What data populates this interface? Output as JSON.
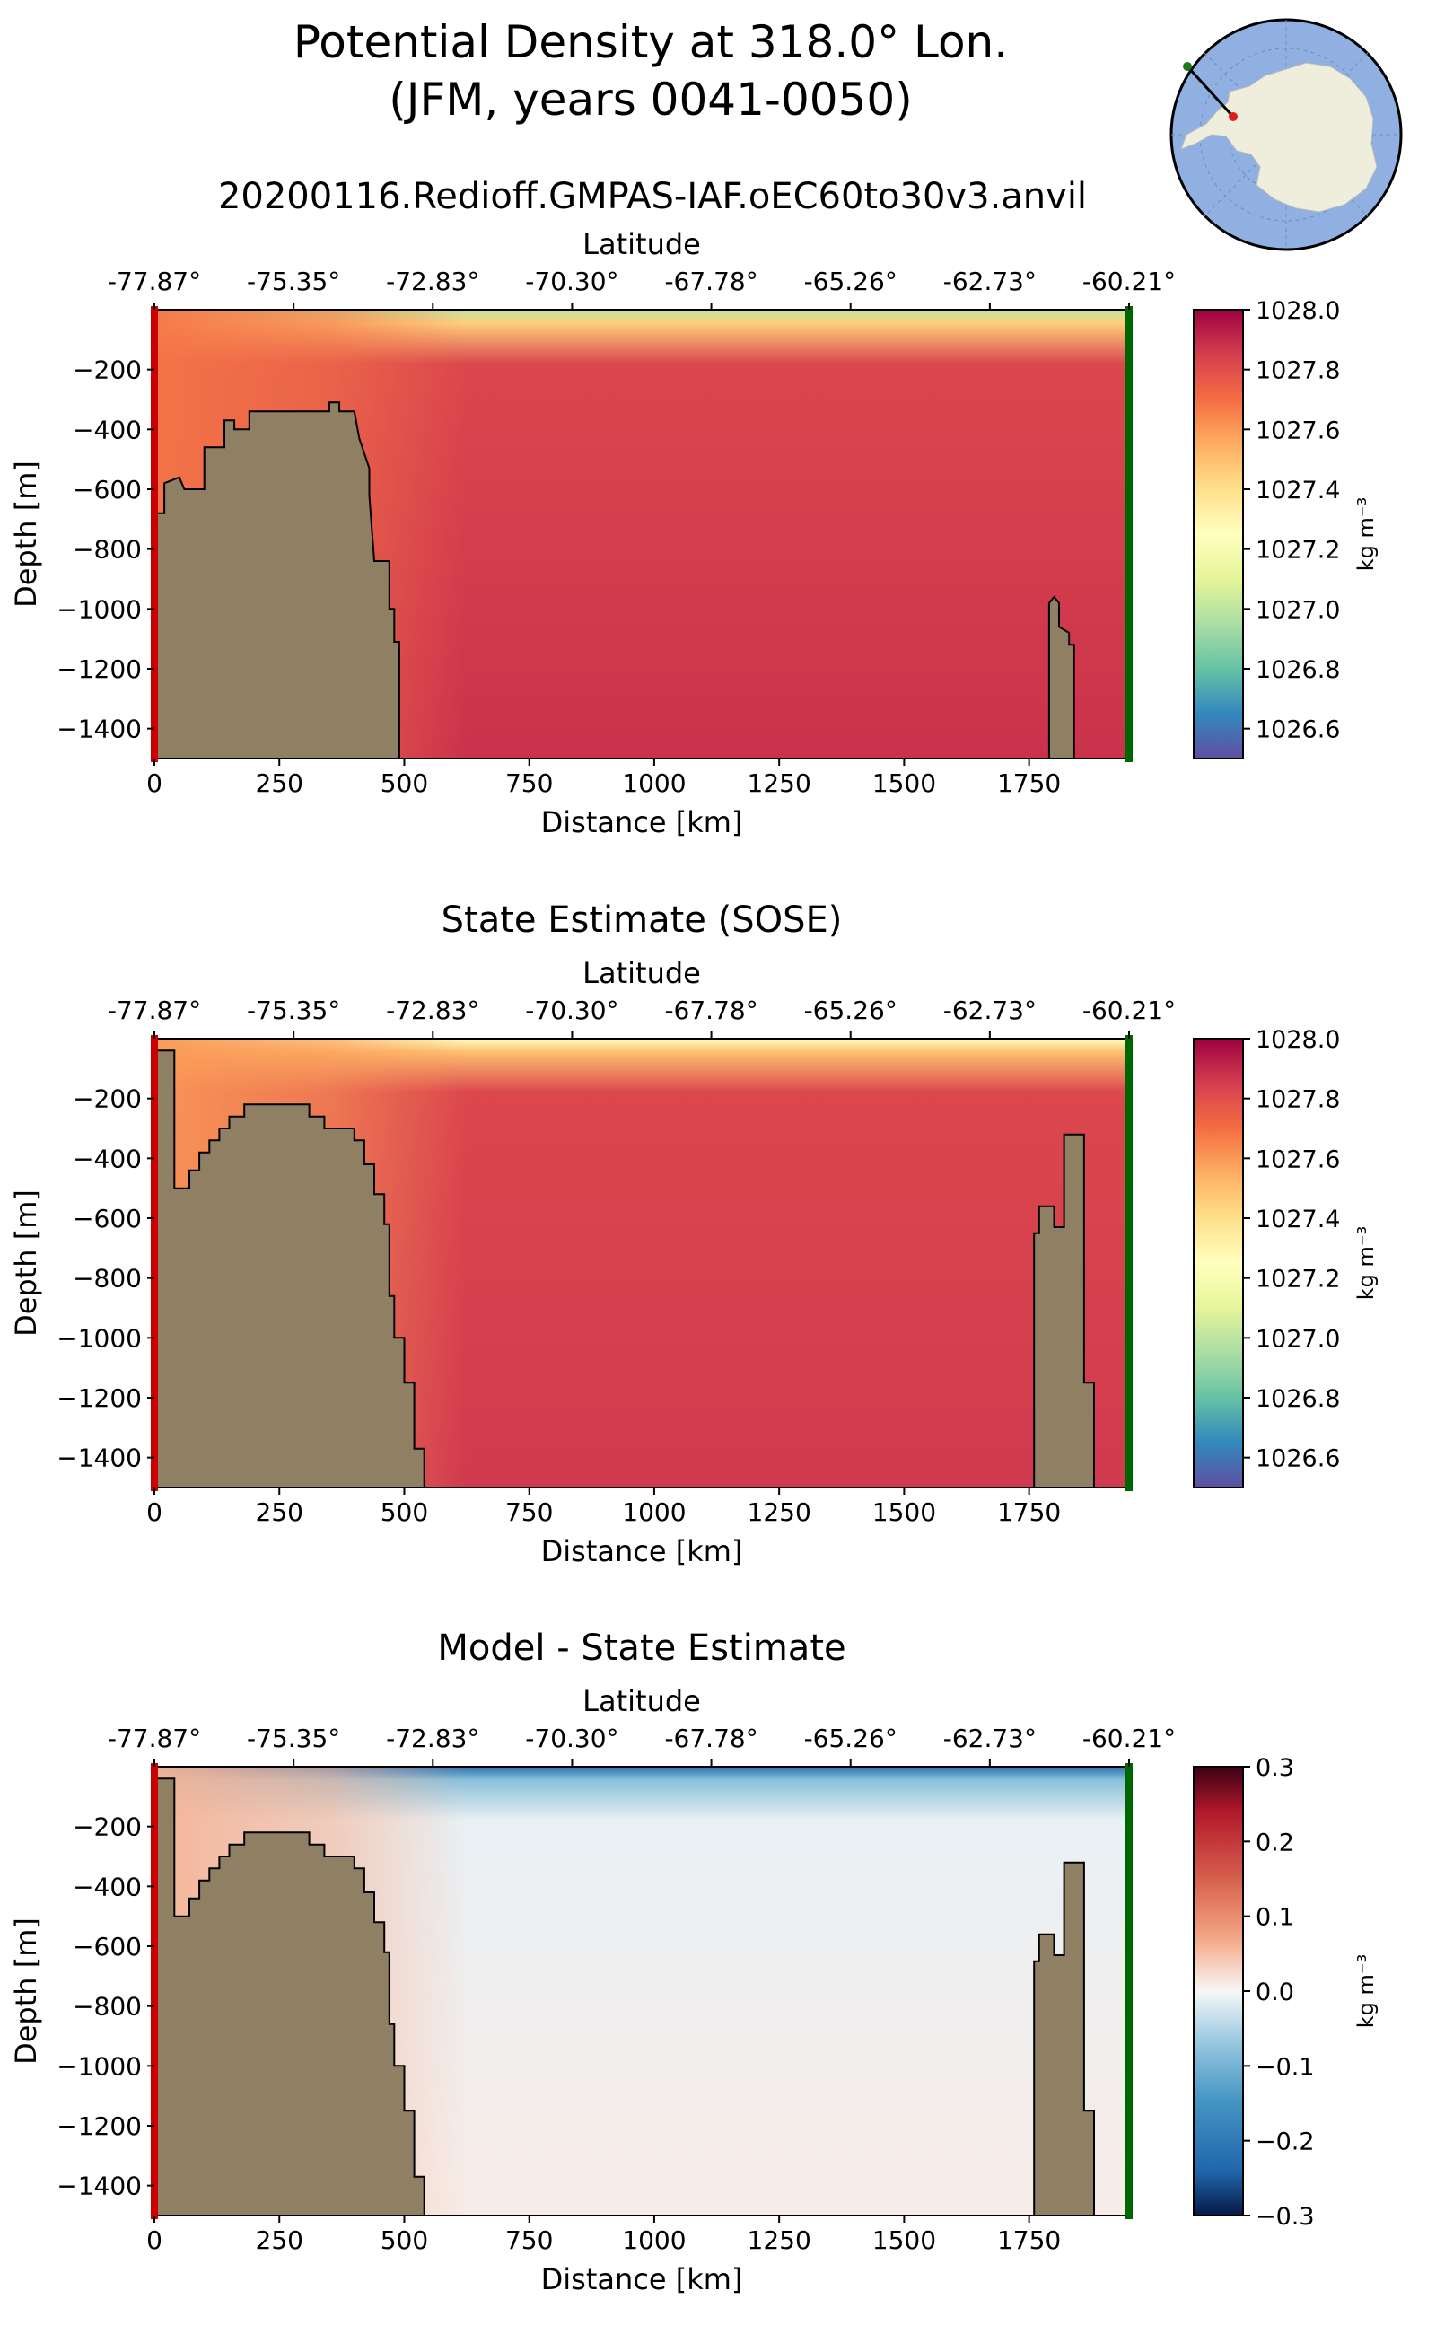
{
  "figure": {
    "title_line1": "Potential Density at 318.0° Lon.",
    "title_line2": "(JFM, years 0041-0050)",
    "subtitle": "20200116.Redioff.GMPAS-IAF.oEC60to30v3.anvil"
  },
  "inset_map": {
    "description_icon": "antarctica-polar-map-icon",
    "ocean_color": "#8fb0e0",
    "land_color": "#efeedd",
    "start_marker_color": "#e31a1c",
    "end_marker_color": "#1a7a1a"
  },
  "chart_data": [
    {
      "type": "heatmap",
      "title": "",
      "xlabel": "Distance [km]",
      "ylabel": "Depth [m]",
      "top_xlabel": "Latitude",
      "xlim": [
        0,
        1950
      ],
      "ylim": [
        -1500,
        0
      ],
      "xticks": [
        0,
        250,
        500,
        750,
        1000,
        1250,
        1500,
        1750
      ],
      "yticks": [
        -200,
        -400,
        -600,
        -800,
        -1000,
        -1200,
        -1400
      ],
      "top_ticks": [
        "-77.87°",
        "-75.35°",
        "-72.83°",
        "-70.30°",
        "-67.78°",
        "-65.26°",
        "-62.73°",
        "-60.21°"
      ],
      "colormap": "Spectral_r",
      "colorbar": {
        "label": "kg m⁻³",
        "min": 1026.5,
        "max": 1028.0,
        "ticks": [
          "1028.0",
          "1027.8",
          "1027.6",
          "1027.4",
          "1027.2",
          "1027.0",
          "1026.8",
          "1026.6"
        ]
      },
      "bathymetry": [
        [
          0,
          -680
        ],
        [
          20,
          -680
        ],
        [
          20,
          -580
        ],
        [
          50,
          -560
        ],
        [
          60,
          -600
        ],
        [
          100,
          -600
        ],
        [
          100,
          -460
        ],
        [
          140,
          -460
        ],
        [
          140,
          -370
        ],
        [
          160,
          -370
        ],
        [
          160,
          -400
        ],
        [
          190,
          -400
        ],
        [
          190,
          -340
        ],
        [
          350,
          -340
        ],
        [
          350,
          -310
        ],
        [
          370,
          -310
        ],
        [
          370,
          -340
        ],
        [
          400,
          -340
        ],
        [
          410,
          -430
        ],
        [
          430,
          -530
        ],
        [
          430,
          -620
        ],
        [
          440,
          -840
        ],
        [
          470,
          -840
        ],
        [
          470,
          -1000
        ],
        [
          480,
          -1000
        ],
        [
          480,
          -1110
        ],
        [
          490,
          -1110
        ],
        [
          490,
          -1500
        ],
        [
          1790,
          -1500
        ],
        [
          1790,
          -980
        ],
        [
          1800,
          -960
        ],
        [
          1810,
          -980
        ],
        [
          1810,
          -1060
        ],
        [
          1830,
          -1080
        ],
        [
          1830,
          -1120
        ],
        [
          1840,
          -1120
        ],
        [
          1840,
          -1500
        ]
      ],
      "field": {
        "surface_top": 1027.0,
        "surface_mid": 1027.45,
        "shelf": 1027.68,
        "interior": 1027.82,
        "deep": 1027.88
      }
    },
    {
      "type": "heatmap",
      "title": "State Estimate (SOSE)",
      "xlabel": "Distance [km]",
      "ylabel": "Depth [m]",
      "top_xlabel": "Latitude",
      "xlim": [
        0,
        1950
      ],
      "ylim": [
        -1500,
        0
      ],
      "xticks": [
        0,
        250,
        500,
        750,
        1000,
        1250,
        1500,
        1750
      ],
      "yticks": [
        -200,
        -400,
        -600,
        -800,
        -1000,
        -1200,
        -1400
      ],
      "top_ticks": [
        "-77.87°",
        "-75.35°",
        "-72.83°",
        "-70.30°",
        "-67.78°",
        "-65.26°",
        "-62.73°",
        "-60.21°"
      ],
      "colormap": "Spectral_r",
      "colorbar": {
        "label": "kg m⁻³",
        "min": 1026.5,
        "max": 1028.0,
        "ticks": [
          "1028.0",
          "1027.8",
          "1027.6",
          "1027.4",
          "1027.2",
          "1027.0",
          "1026.8",
          "1026.6"
        ]
      },
      "bathymetry": [
        [
          0,
          -40
        ],
        [
          40,
          -40
        ],
        [
          40,
          -500
        ],
        [
          70,
          -500
        ],
        [
          70,
          -440
        ],
        [
          90,
          -440
        ],
        [
          90,
          -380
        ],
        [
          110,
          -380
        ],
        [
          110,
          -340
        ],
        [
          130,
          -340
        ],
        [
          130,
          -300
        ],
        [
          150,
          -300
        ],
        [
          150,
          -260
        ],
        [
          180,
          -260
        ],
        [
          180,
          -220
        ],
        [
          310,
          -220
        ],
        [
          310,
          -260
        ],
        [
          340,
          -260
        ],
        [
          340,
          -300
        ],
        [
          400,
          -300
        ],
        [
          400,
          -340
        ],
        [
          420,
          -340
        ],
        [
          420,
          -420
        ],
        [
          440,
          -420
        ],
        [
          440,
          -520
        ],
        [
          460,
          -520
        ],
        [
          460,
          -620
        ],
        [
          470,
          -620
        ],
        [
          470,
          -860
        ],
        [
          480,
          -860
        ],
        [
          480,
          -1000
        ],
        [
          500,
          -1000
        ],
        [
          500,
          -1150
        ],
        [
          520,
          -1150
        ],
        [
          520,
          -1370
        ],
        [
          540,
          -1370
        ],
        [
          540,
          -1500
        ],
        [
          1760,
          -1500
        ],
        [
          1760,
          -650
        ],
        [
          1770,
          -650
        ],
        [
          1770,
          -560
        ],
        [
          1800,
          -560
        ],
        [
          1800,
          -630
        ],
        [
          1820,
          -630
        ],
        [
          1820,
          -320
        ],
        [
          1860,
          -320
        ],
        [
          1860,
          -1150
        ],
        [
          1880,
          -1150
        ],
        [
          1880,
          -1500
        ]
      ],
      "field": {
        "surface_top": 1027.25,
        "surface_mid": 1027.5,
        "shelf": 1027.6,
        "interior": 1027.82,
        "deep": 1027.86
      }
    },
    {
      "type": "heatmap",
      "title": "Model - State Estimate",
      "xlabel": "Distance [km]",
      "ylabel": "Depth [m]",
      "top_xlabel": "Latitude",
      "xlim": [
        0,
        1950
      ],
      "ylim": [
        -1500,
        0
      ],
      "xticks": [
        0,
        250,
        500,
        750,
        1000,
        1250,
        1500,
        1750
      ],
      "yticks": [
        -200,
        -400,
        -600,
        -800,
        -1000,
        -1200,
        -1400
      ],
      "top_ticks": [
        "-77.87°",
        "-75.35°",
        "-72.83°",
        "-70.30°",
        "-67.78°",
        "-65.26°",
        "-62.73°",
        "-60.21°"
      ],
      "colormap": "RdBu_r",
      "colorbar": {
        "label": "kg m⁻³",
        "min": -0.3,
        "max": 0.3,
        "ticks": [
          "0.3",
          "0.2",
          "0.1",
          "0.0",
          "−0.1",
          "−0.2",
          "−0.3"
        ]
      },
      "bathymetry": [
        [
          0,
          -40
        ],
        [
          40,
          -40
        ],
        [
          40,
          -500
        ],
        [
          70,
          -500
        ],
        [
          70,
          -440
        ],
        [
          90,
          -440
        ],
        [
          90,
          -380
        ],
        [
          110,
          -380
        ],
        [
          110,
          -340
        ],
        [
          130,
          -340
        ],
        [
          130,
          -300
        ],
        [
          150,
          -300
        ],
        [
          150,
          -260
        ],
        [
          180,
          -260
        ],
        [
          180,
          -220
        ],
        [
          310,
          -220
        ],
        [
          310,
          -260
        ],
        [
          340,
          -260
        ],
        [
          340,
          -300
        ],
        [
          400,
          -300
        ],
        [
          400,
          -340
        ],
        [
          420,
          -340
        ],
        [
          420,
          -420
        ],
        [
          440,
          -420
        ],
        [
          440,
          -520
        ],
        [
          460,
          -520
        ],
        [
          460,
          -620
        ],
        [
          470,
          -620
        ],
        [
          470,
          -860
        ],
        [
          480,
          -860
        ],
        [
          480,
          -1000
        ],
        [
          500,
          -1000
        ],
        [
          500,
          -1150
        ],
        [
          520,
          -1150
        ],
        [
          520,
          -1370
        ],
        [
          540,
          -1370
        ],
        [
          540,
          -1500
        ],
        [
          1760,
          -1500
        ],
        [
          1760,
          -650
        ],
        [
          1770,
          -650
        ],
        [
          1770,
          -560
        ],
        [
          1800,
          -560
        ],
        [
          1800,
          -630
        ],
        [
          1820,
          -630
        ],
        [
          1820,
          -320
        ],
        [
          1860,
          -320
        ],
        [
          1860,
          -1150
        ],
        [
          1880,
          -1150
        ],
        [
          1880,
          -1500
        ]
      ],
      "field": {
        "surface_top": -0.22,
        "surface_mid": -0.08,
        "shelf": 0.06,
        "interior": -0.01,
        "deep": 0.01
      }
    }
  ],
  "colors": {
    "bathymetry": "#8f7f63",
    "section_start": "#cc0000",
    "section_end": "#006600"
  }
}
